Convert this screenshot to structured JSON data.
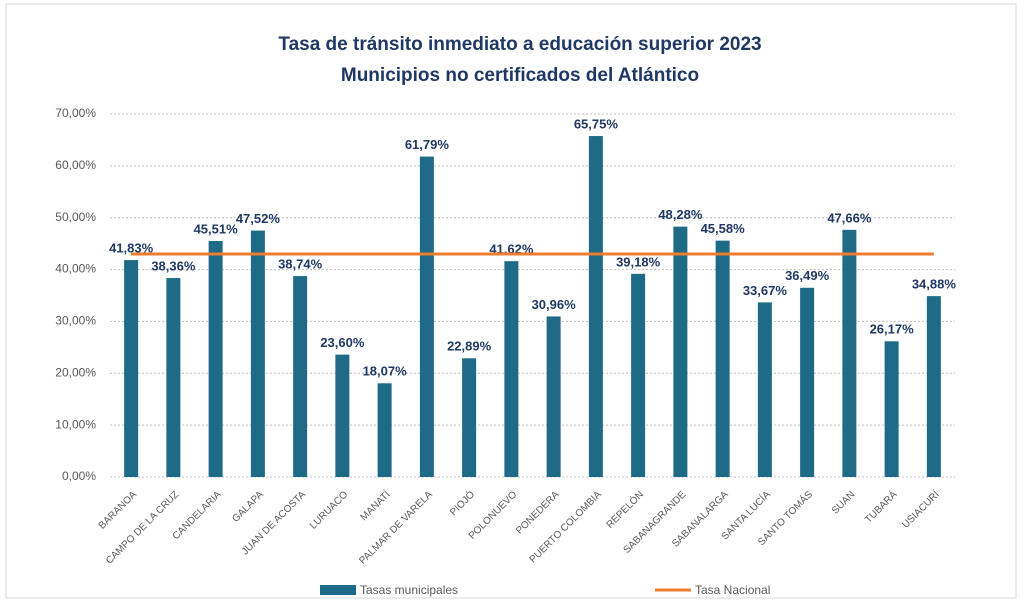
{
  "chart_data": {
    "type": "bar",
    "title": "Tasa de tránsito inmediato a educación superior 2023",
    "subtitle": "Municipios no certificados del Atlántico",
    "categories": [
      "BARANOA",
      "CAMPO DE LA CRUZ",
      "CANDELARIA",
      "GALAPA",
      "JUAN DE ACOSTA",
      "LURUACO",
      "MANATÍ",
      "PALMAR DE VARELA",
      "PIOJÓ",
      "POLONUEVO",
      "PONEDERA",
      "PUERTO COLOMBIA",
      "REPELÓN",
      "SABANAGRANDE",
      "SABANALARGA",
      "SANTA LUCÍA",
      "SANTO TOMÁS",
      "SUAN",
      "TUBARÁ",
      "USIACURÍ"
    ],
    "series": [
      {
        "name": "Tasas municipales",
        "type": "bar",
        "color": "#1d6b86",
        "values": [
          41.83,
          38.36,
          45.51,
          47.52,
          38.74,
          23.6,
          18.07,
          61.79,
          22.89,
          41.62,
          30.96,
          65.75,
          39.18,
          48.28,
          45.58,
          33.67,
          36.49,
          47.66,
          26.17,
          34.88
        ],
        "value_labels": [
          "41,83%",
          "38,36%",
          "45,51%",
          "47,52%",
          "38,74%",
          "23,60%",
          "18,07%",
          "61,79%",
          "22,89%",
          "41,62%",
          "30,96%",
          "65,75%",
          "39,18%",
          "48,28%",
          "45,58%",
          "33,67%",
          "36,49%",
          "47,66%",
          "26,17%",
          "34,88%"
        ]
      },
      {
        "name": "Tasa Nacional",
        "type": "line",
        "color": "#ed7d31",
        "values": [
          43,
          43,
          43,
          43,
          43,
          43,
          43,
          43,
          43,
          43,
          43,
          43,
          43,
          43,
          43,
          43,
          43,
          43,
          43,
          43
        ]
      }
    ],
    "ylim": [
      0,
      70
    ],
    "yticks": [
      {
        "value": 0,
        "label": "0,00%"
      },
      {
        "value": 10,
        "label": "10,00%"
      },
      {
        "value": 20,
        "label": "20,00%"
      },
      {
        "value": 30,
        "label": "30,00%"
      },
      {
        "value": 40,
        "label": "40,00%"
      },
      {
        "value": 50,
        "label": "50,00%"
      },
      {
        "value": 60,
        "label": "60,00%"
      },
      {
        "value": 70,
        "label": "70,00%"
      }
    ],
    "grid": true,
    "legend": "bottom"
  }
}
